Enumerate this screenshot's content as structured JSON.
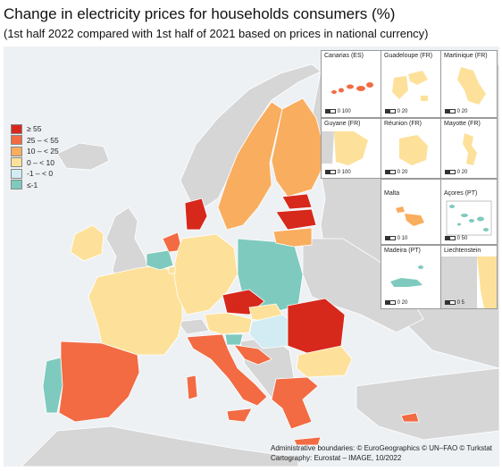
{
  "title": "Change in electricity prices for households consumers (%)",
  "subtitle": "(1st half 2022 compared with 1st half of 2021 based on prices in national currency)",
  "colors": {
    "c55": "#d7281c",
    "c25_55": "#f26b43",
    "c10_25": "#f9ad5e",
    "c0_10": "#fde19a",
    "cm1_0": "#d3ecf3",
    "cle_m1": "#7fcabe",
    "nodata": "#d6d6d6",
    "sea": "#eef1f4"
  },
  "legend": [
    {
      "label": "≥ 55",
      "color": "#d7281c"
    },
    {
      "label": "25 – < 55",
      "color": "#f26b43"
    },
    {
      "label": "10 – < 25",
      "color": "#f9ad5e"
    },
    {
      "label": "0 – < 10",
      "color": "#fde19a"
    },
    {
      "label": "-1 – < 0",
      "color": "#d3ecf3"
    },
    {
      "label": "≤-1",
      "color": "#7fcabe"
    }
  ],
  "insets": [
    {
      "name": "Canarias (ES)",
      "scale": "0 100"
    },
    {
      "name": "Guadeloupe (FR)",
      "scale": "0 20"
    },
    {
      "name": "Martinique (FR)",
      "scale": "0 20"
    },
    {
      "name": "Guyane (FR)",
      "scale": "0 100"
    },
    {
      "name": "Réunion (FR)",
      "scale": "0 20"
    },
    {
      "name": "Mayotte (FR)",
      "scale": "0 20"
    },
    {
      "name": "Malta",
      "scale": "0 10"
    },
    {
      "name": "Açores (PT)",
      "scale": "0 50"
    },
    {
      "name": "Madeira (PT)",
      "scale": "0 20"
    },
    {
      "name": "Liechtenstein",
      "scale": "0 5"
    }
  ],
  "credits": {
    "line1": "Administrative boundaries: © EuroGeographics © UN–FAO © Turkstat",
    "line2": "Cartography: Eurostat – IMAGE, 10/2022"
  }
}
